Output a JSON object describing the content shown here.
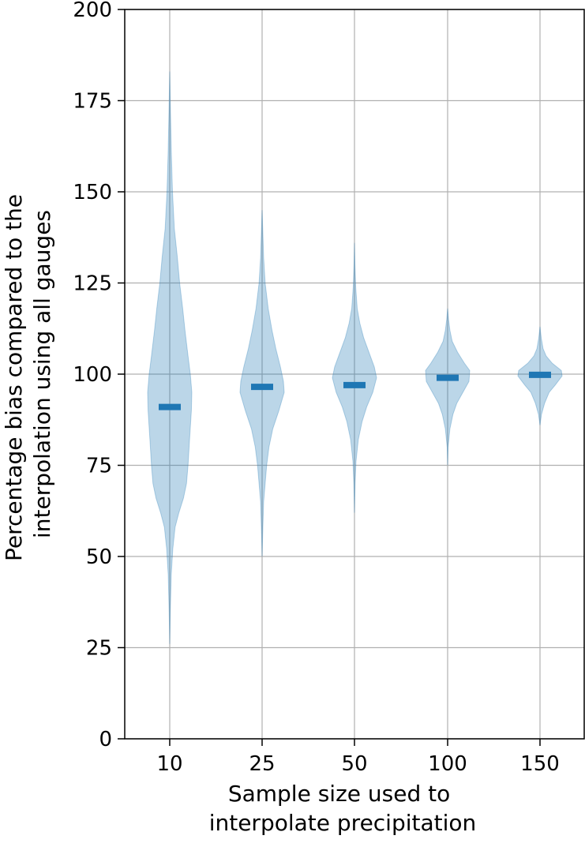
{
  "chart_data": {
    "type": "violin",
    "title": "",
    "xlabel": [
      "Sample size used to",
      "interpolate precipitation"
    ],
    "ylabel": [
      "Percentage bias compared to the",
      "interpolation using all gauges"
    ],
    "categories": [
      "10",
      "25",
      "50",
      "100",
      "150"
    ],
    "ylim": [
      0,
      200
    ],
    "yticks": [
      0,
      25,
      50,
      75,
      100,
      125,
      150,
      175,
      200
    ],
    "grid": true,
    "legend": "none",
    "colors": {
      "violin_fill": "#1f77b4",
      "median": "#1f77b4",
      "grid": "#b0b0b0",
      "axis": "#000000"
    },
    "violins": [
      {
        "category": "10",
        "min": 26,
        "max": 183,
        "median": 91,
        "profile": [
          [
            26,
            0.0
          ],
          [
            35,
            0.4
          ],
          [
            45,
            1.0
          ],
          [
            52,
            2.0
          ],
          [
            58,
            3.5
          ],
          [
            62,
            6.0
          ],
          [
            66,
            9.0
          ],
          [
            70,
            11.0
          ],
          [
            75,
            12.0
          ],
          [
            82,
            13.0
          ],
          [
            90,
            14.2
          ],
          [
            95,
            14.5
          ],
          [
            100,
            13.5
          ],
          [
            105,
            12.0
          ],
          [
            112,
            10.0
          ],
          [
            118,
            8.5
          ],
          [
            125,
            6.5
          ],
          [
            132,
            5.0
          ],
          [
            140,
            3.0
          ],
          [
            150,
            1.8
          ],
          [
            160,
            1.1
          ],
          [
            170,
            0.6
          ],
          [
            183,
            0.0
          ]
        ]
      },
      {
        "category": "25",
        "min": 50,
        "max": 145,
        "median": 96.5,
        "profile": [
          [
            50,
            0.0
          ],
          [
            58,
            0.5
          ],
          [
            65,
            1.0
          ],
          [
            70,
            2.0
          ],
          [
            75,
            3.0
          ],
          [
            80,
            4.5
          ],
          [
            85,
            7.0
          ],
          [
            90,
            11.0
          ],
          [
            95,
            14.5
          ],
          [
            98,
            14.0
          ],
          [
            102,
            12.0
          ],
          [
            107,
            9.0
          ],
          [
            112,
            6.5
          ],
          [
            118,
            4.0
          ],
          [
            125,
            2.0
          ],
          [
            132,
            1.0
          ],
          [
            140,
            0.4
          ],
          [
            145,
            0.0
          ]
        ]
      },
      {
        "category": "50",
        "min": 62,
        "max": 136,
        "median": 97,
        "profile": [
          [
            62,
            0.0
          ],
          [
            70,
            0.4
          ],
          [
            76,
            1.0
          ],
          [
            82,
            2.5
          ],
          [
            87,
            5.0
          ],
          [
            91,
            8.0
          ],
          [
            95,
            12.0
          ],
          [
            99,
            14.5
          ],
          [
            102,
            13.0
          ],
          [
            106,
            9.5
          ],
          [
            110,
            6.0
          ],
          [
            114,
            3.5
          ],
          [
            118,
            1.8
          ],
          [
            124,
            0.8
          ],
          [
            130,
            0.3
          ],
          [
            136,
            0.0
          ]
        ]
      },
      {
        "category": "100",
        "min": 75,
        "max": 118,
        "median": 99,
        "profile": [
          [
            75,
            0.0
          ],
          [
            80,
            0.3
          ],
          [
            85,
            1.5
          ],
          [
            89,
            3.5
          ],
          [
            92,
            6.0
          ],
          [
            95,
            10.0
          ],
          [
            98,
            14.0
          ],
          [
            101,
            14.5
          ],
          [
            103,
            11.0
          ],
          [
            106,
            6.5
          ],
          [
            109,
            3.0
          ],
          [
            112,
            1.5
          ],
          [
            115,
            0.6
          ],
          [
            118,
            0.0
          ]
        ]
      },
      {
        "category": "150",
        "min": 86,
        "max": 113,
        "median": 99.8,
        "profile": [
          [
            86,
            0.0
          ],
          [
            89,
            1.0
          ],
          [
            92,
            3.0
          ],
          [
            95,
            6.0
          ],
          [
            97,
            10.0
          ],
          [
            99.5,
            14.5
          ],
          [
            101,
            14.0
          ],
          [
            103,
            8.0
          ],
          [
            105,
            4.0
          ],
          [
            107,
            2.0
          ],
          [
            110,
            0.8
          ],
          [
            113,
            0.0
          ]
        ]
      }
    ]
  }
}
